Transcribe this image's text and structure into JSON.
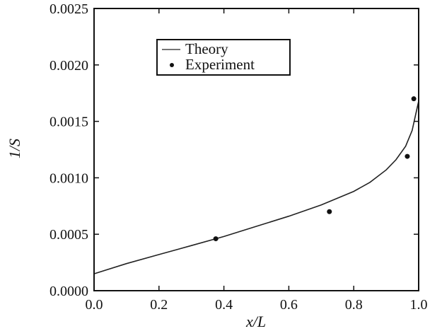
{
  "chart_data": {
    "type": "line",
    "title": "",
    "xlabel": "x/L",
    "ylabel": "1/S",
    "xlim": [
      0.0,
      1.0
    ],
    "ylim": [
      0.0,
      0.0025
    ],
    "x_ticks": [
      "0.0",
      "0.2",
      "0.4",
      "0.6",
      "0.8",
      "1.0"
    ],
    "y_ticks": [
      "0.0000",
      "0.0005",
      "0.0010",
      "0.0015",
      "0.0020",
      "0.0025"
    ],
    "grid": false,
    "legend_position": "top-center",
    "series": [
      {
        "name": "Theory",
        "kind": "line",
        "color": "#222222",
        "x": [
          0.0,
          0.1,
          0.2,
          0.3,
          0.4,
          0.5,
          0.6,
          0.7,
          0.8,
          0.85,
          0.9,
          0.93,
          0.96,
          0.98,
          0.99,
          1.0
        ],
        "y": [
          0.00015,
          0.00024,
          0.00032,
          0.0004,
          0.00048,
          0.00057,
          0.00066,
          0.00076,
          0.00088,
          0.00096,
          0.00107,
          0.00116,
          0.00128,
          0.00142,
          0.00155,
          0.00168
        ]
      },
      {
        "name": "Experiment",
        "kind": "scatter",
        "color": "#111111",
        "x": [
          0.375,
          0.725,
          0.965,
          0.985
        ],
        "y": [
          0.00046,
          0.0007,
          0.00119,
          0.0017
        ]
      }
    ]
  }
}
